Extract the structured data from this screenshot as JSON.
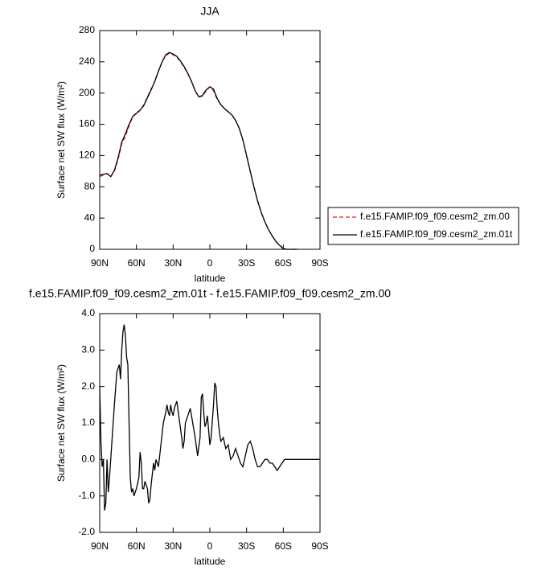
{
  "chart_data": [
    {
      "type": "line",
      "title": "JJA",
      "xlabel": "latitude",
      "ylabel": "Surface net SW flux (W/m²)",
      "xlim": [
        90,
        -90
      ],
      "xticks": [
        {
          "value": 90,
          "label": "90N"
        },
        {
          "value": 60,
          "label": "60N"
        },
        {
          "value": 30,
          "label": "30N"
        },
        0,
        {
          "value": -30,
          "label": "30S"
        },
        {
          "value": -60,
          "label": "60S"
        },
        {
          "value": -90,
          "label": "90S"
        }
      ],
      "ylim": [
        0,
        280
      ],
      "yticks": [
        0,
        40,
        80,
        120,
        160,
        200,
        240,
        280
      ],
      "legend": "right",
      "x": [
        90,
        87,
        84,
        81,
        78,
        75,
        72,
        69,
        66,
        63,
        60,
        57,
        54,
        51,
        48,
        45,
        42,
        39,
        36,
        33,
        30,
        27,
        24,
        21,
        18,
        15,
        12,
        9,
        6,
        3,
        0,
        -3,
        -6,
        -9,
        -12,
        -15,
        -18,
        -21,
        -24,
        -27,
        -30,
        -33,
        -36,
        -39,
        -42,
        -45,
        -48,
        -51,
        -54,
        -57,
        -60,
        -63,
        -66,
        -69,
        -72
      ],
      "series": [
        {
          "name": "f.e15.FAMIP.f09_f09.cesm2_zm.00",
          "color": "#e41a1c",
          "style": "dashed",
          "values": [
            93,
            95,
            97,
            93,
            100,
            115,
            135,
            145,
            158,
            170,
            175,
            178,
            185,
            195,
            205,
            215,
            228,
            240,
            248,
            251,
            249,
            246,
            240,
            233,
            225,
            215,
            203,
            195,
            196,
            203,
            208,
            203,
            192,
            185,
            180,
            176,
            172,
            165,
            155,
            140,
            120,
            100,
            80,
            62,
            47,
            35,
            25,
            17,
            10,
            5,
            1,
            0,
            0,
            0,
            0
          ]
        },
        {
          "name": "f.e15.FAMIP.f09_f09.cesm2_zm.01t",
          "color": "#000000",
          "style": "solid",
          "values": [
            95,
            96,
            97,
            93,
            101,
            117,
            137,
            148,
            160,
            170,
            174,
            178,
            184,
            194,
            204,
            215,
            228,
            240,
            249,
            252,
            250,
            247,
            241,
            234,
            225,
            215,
            203,
            195,
            197,
            204,
            208,
            205,
            193,
            185,
            180,
            176,
            172,
            165,
            155,
            140,
            120,
            100,
            80,
            62,
            47,
            35,
            25,
            17,
            10,
            5,
            1,
            0,
            0,
            0,
            0
          ]
        }
      ]
    },
    {
      "type": "line",
      "title": "f.e15.FAMIP.f09_f09.cesm2_zm.01t - f.e15.FAMIP.f09_f09.cesm2_zm.00",
      "xlabel": "latitude",
      "ylabel": "Surface net SW flux (W/m²)",
      "xlim": [
        90,
        -90
      ],
      "xticks": [
        {
          "value": 90,
          "label": "90N"
        },
        {
          "value": 60,
          "label": "60N"
        },
        {
          "value": 30,
          "label": "30N"
        },
        0,
        {
          "value": -30,
          "label": "30S"
        },
        {
          "value": -60,
          "label": "60S"
        },
        {
          "value": -90,
          "label": "90S"
        }
      ],
      "ylim": [
        -2,
        4
      ],
      "yticks": [
        {
          "value": -2,
          "label": "-2.0"
        },
        {
          "value": -1,
          "label": "-1.0"
        },
        {
          "value": 0,
          "label": "0.0"
        },
        {
          "value": 1,
          "label": "1.0"
        },
        {
          "value": 2,
          "label": "2.0"
        },
        {
          "value": 3,
          "label": "3.0"
        },
        {
          "value": 4,
          "label": "4.0"
        }
      ],
      "x": [
        90,
        89,
        88,
        87,
        86,
        85,
        84,
        83,
        82,
        80,
        78,
        76,
        74,
        73,
        72,
        71,
        70,
        69,
        68,
        67,
        66,
        65,
        64,
        63,
        62,
        61,
        60,
        58,
        57,
        56,
        55,
        54,
        53,
        51,
        50,
        49,
        48,
        47,
        46,
        45,
        44,
        42,
        40,
        38,
        36,
        35,
        34,
        33,
        32,
        31,
        30,
        29,
        27,
        25,
        23,
        22,
        21,
        20,
        18,
        16,
        14,
        12,
        10,
        8,
        7,
        6,
        5,
        4,
        3,
        2,
        1,
        0,
        -1,
        -3,
        -4,
        -5,
        -6,
        -7,
        -8,
        -9,
        -11,
        -13,
        -15,
        -17,
        -19,
        -21,
        -23,
        -25,
        -27,
        -29,
        -31,
        -33,
        -35,
        -37,
        -39,
        -41,
        -43,
        -45,
        -47,
        -49,
        -51,
        -53,
        -55,
        -57,
        -59,
        -61,
        -63,
        -70,
        -80,
        -90
      ],
      "series": [
        {
          "color": "#000000",
          "style": "solid",
          "values": [
            2.0,
            0.5,
            -0.2,
            0.0,
            -1.4,
            -1.2,
            0.0,
            -0.9,
            -0.5,
            0.5,
            1.5,
            2.4,
            2.6,
            2.2,
            3.0,
            3.5,
            3.7,
            3.4,
            2.8,
            2.6,
            1.0,
            -0.5,
            -0.9,
            -0.8,
            -1.0,
            -0.9,
            -0.8,
            -0.5,
            0.2,
            -0.1,
            -0.8,
            -0.8,
            -0.6,
            -0.8,
            -1.2,
            -1.1,
            -0.7,
            -0.4,
            -0.1,
            -0.3,
            0.0,
            -0.2,
            0.4,
            1.0,
            1.3,
            1.5,
            1.3,
            1.2,
            1.5,
            1.3,
            1.2,
            1.4,
            1.6,
            1.1,
            0.6,
            0.3,
            0.5,
            1.0,
            1.2,
            1.4,
            1.0,
            0.6,
            0.1,
            0.6,
            1.7,
            1.8,
            1.3,
            0.9,
            1.0,
            1.2,
            0.8,
            0.4,
            0.6,
            1.5,
            2.1,
            2.0,
            1.4,
            1.0,
            0.7,
            0.5,
            0.6,
            0.3,
            0.4,
            0.0,
            0.1,
            0.3,
            0.1,
            -0.1,
            -0.2,
            0.1,
            0.4,
            0.5,
            0.3,
            0.0,
            -0.2,
            -0.2,
            -0.1,
            0.0,
            0.0,
            -0.1,
            -0.1,
            -0.2,
            -0.3,
            -0.2,
            -0.1,
            0.0,
            0.0,
            0.0,
            0.0,
            0.0
          ]
        }
      ]
    }
  ]
}
